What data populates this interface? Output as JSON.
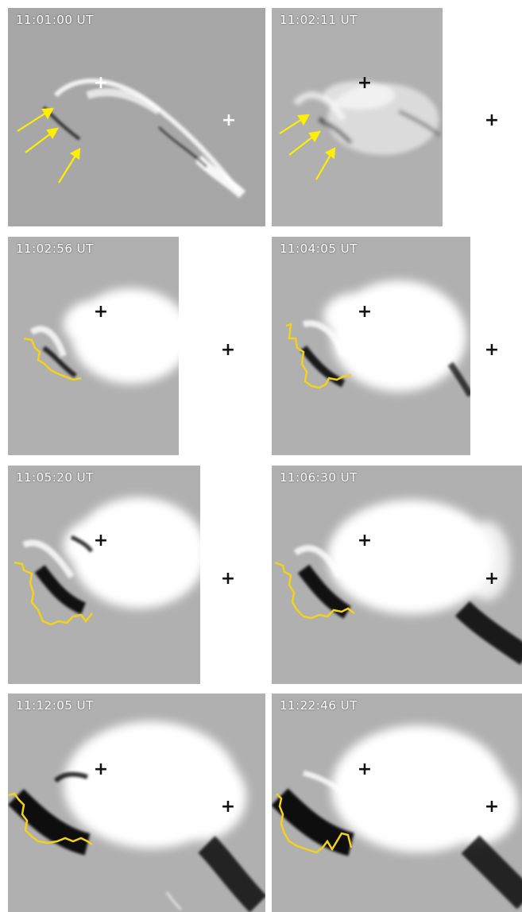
{
  "figure": {
    "panels": [
      {
        "id": "p1",
        "timestamp": "11:01:00 UT"
      },
      {
        "id": "p2",
        "timestamp": "11:02:11 UT"
      },
      {
        "id": "p3",
        "timestamp": "11:02:56 UT"
      },
      {
        "id": "p4",
        "timestamp": "11:04:05 UT"
      },
      {
        "id": "p5",
        "timestamp": "11:05:20 UT"
      },
      {
        "id": "p6",
        "timestamp": "11:06:30 UT"
      },
      {
        "id": "p7",
        "timestamp": "11:12:05 UT"
      },
      {
        "id": "p8",
        "timestamp": "11:22:46 UT"
      }
    ],
    "colors": {
      "arrow": "#ffee00",
      "contour": "#f2d21a",
      "marker_light": "#ffffff",
      "marker_dark": "#111111",
      "bright_region": "#ffffff",
      "dimming_region": "#0a0a0a"
    },
    "icons": [
      "plus-marker-icon",
      "arrow-icon"
    ]
  }
}
